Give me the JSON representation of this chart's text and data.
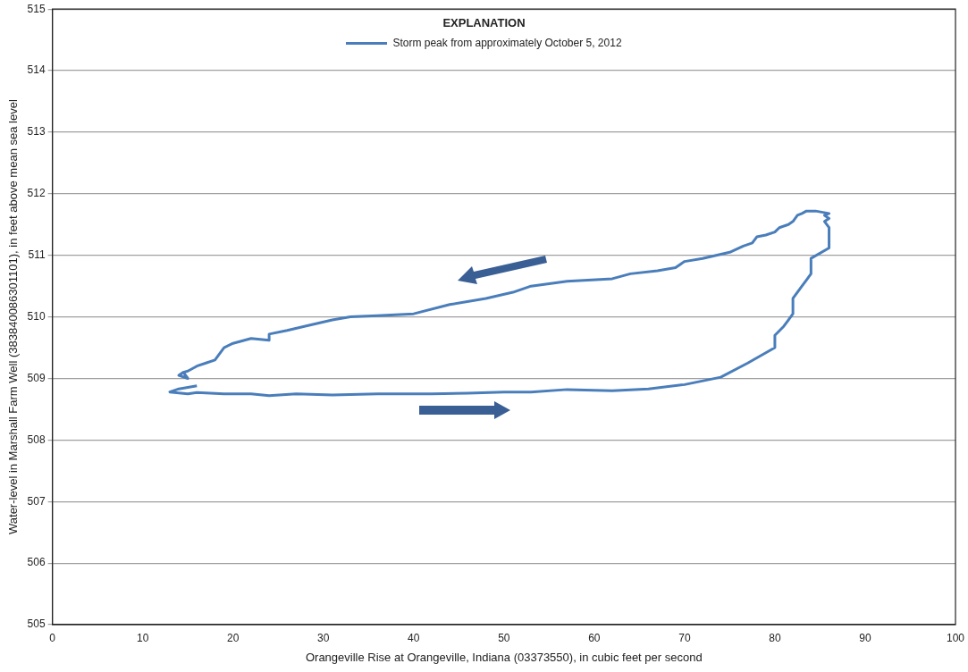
{
  "chart_data": {
    "type": "line",
    "xlabel": "Orangeville Rise at Orangeville, Indiana (03373550), in cubic feet per second",
    "ylabel": "Water-level in Marshall Farm Well (383840086301101), in feet above mean sea level",
    "legend_title": "EXPLANATION",
    "legend": "top",
    "grid": "y",
    "marker": "none",
    "line_style": "solid",
    "xlim": [
      0,
      100
    ],
    "xticks": [
      0,
      10,
      20,
      30,
      40,
      50,
      60,
      70,
      80,
      90,
      100
    ],
    "ylim": [
      505,
      515
    ],
    "yticks": [
      505,
      506,
      507,
      508,
      509,
      510,
      511,
      512,
      513,
      514,
      515
    ],
    "series": [
      {
        "name": "Storm peak from approximately October 5, 2012",
        "color": "#4a7ebb",
        "x": [
          16,
          14,
          13,
          15,
          16,
          19,
          22,
          24,
          27,
          31,
          36,
          42,
          46,
          50,
          53,
          57,
          62,
          66,
          70,
          74,
          77,
          80,
          80,
          81,
          81.5,
          82,
          82,
          83,
          83.5,
          84,
          84,
          86,
          86,
          85.5,
          86,
          85.5,
          86,
          84.5,
          83.5,
          83,
          82.5,
          82,
          81.5,
          80.5,
          80,
          79,
          78,
          77.5,
          76.5,
          75,
          73.5,
          72,
          70,
          69,
          67,
          64,
          62,
          57,
          53,
          51,
          48,
          44,
          40,
          36,
          33,
          31,
          28,
          26,
          24,
          24,
          22,
          20,
          19,
          18,
          17,
          16,
          15,
          14.5,
          14,
          15,
          14.5
        ],
        "values": [
          508.88,
          508.83,
          508.78,
          508.75,
          508.77,
          508.75,
          508.75,
          508.72,
          508.75,
          508.73,
          508.75,
          508.75,
          508.76,
          508.78,
          508.78,
          508.82,
          508.8,
          508.83,
          508.9,
          509.02,
          509.25,
          509.5,
          509.7,
          509.85,
          509.95,
          510.05,
          510.3,
          510.5,
          510.6,
          510.7,
          510.95,
          511.12,
          511.45,
          511.55,
          511.6,
          511.65,
          511.68,
          511.72,
          511.72,
          511.68,
          511.65,
          511.55,
          511.5,
          511.45,
          511.38,
          511.33,
          511.3,
          511.2,
          511.15,
          511.05,
          511,
          510.95,
          510.9,
          510.8,
          510.75,
          510.7,
          510.62,
          510.58,
          510.5,
          510.4,
          510.3,
          510.2,
          510.05,
          510.02,
          510,
          509.95,
          509.85,
          509.78,
          509.72,
          509.62,
          509.65,
          509.57,
          509.5,
          509.3,
          509.25,
          509.2,
          509.12,
          509.1,
          509.05,
          509,
          509.1
        ]
      }
    ]
  }
}
